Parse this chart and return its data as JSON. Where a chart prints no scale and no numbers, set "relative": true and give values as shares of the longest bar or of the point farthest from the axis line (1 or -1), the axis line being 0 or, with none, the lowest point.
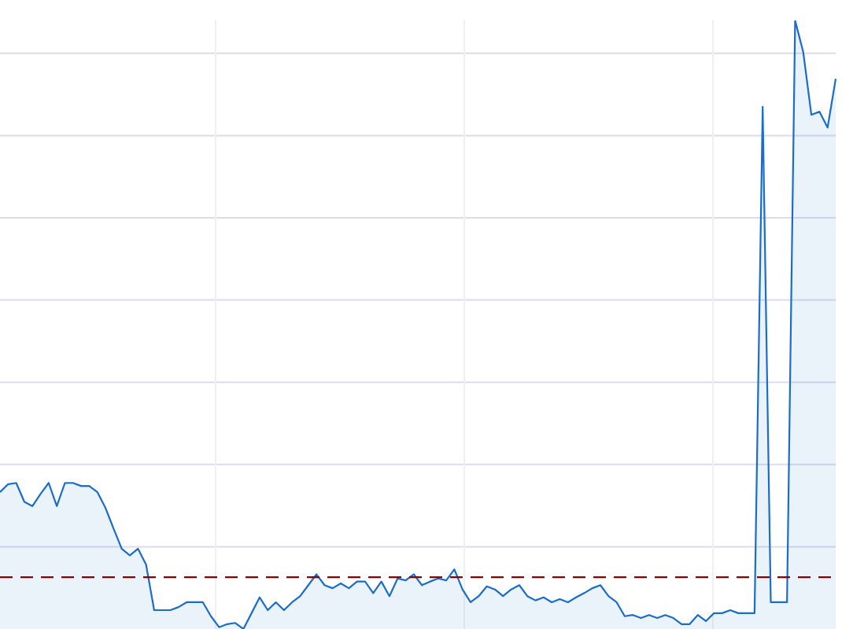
{
  "chart_data": {
    "type": "area",
    "relative": true,
    "categories": [
      null,
      null,
      null,
      null,
      null,
      null,
      null,
      null,
      null,
      null,
      null,
      null,
      null,
      null,
      null,
      null,
      null,
      null,
      null,
      null,
      null,
      null,
      null,
      null,
      null,
      null,
      null,
      null,
      null,
      null,
      null,
      null,
      null,
      null,
      null,
      null,
      null,
      null,
      null,
      null,
      null,
      null,
      null,
      null,
      null,
      null,
      null,
      null,
      null,
      null,
      null,
      null,
      null,
      null,
      null,
      null,
      null,
      null,
      null,
      null,
      null,
      null,
      null,
      null,
      null,
      null,
      null,
      null,
      null,
      null,
      null,
      null,
      null,
      null,
      null,
      null,
      null,
      null,
      null,
      null,
      null,
      null,
      null,
      null,
      null,
      null,
      null,
      null,
      null,
      null,
      null,
      null,
      null,
      null,
      null,
      null,
      null,
      null,
      null,
      null,
      null,
      null,
      null,
      null
    ],
    "values": [
      0.225,
      0.238,
      0.24,
      0.209,
      0.202,
      0.222,
      0.24,
      0.202,
      0.24,
      0.24,
      0.235,
      0.235,
      0.225,
      0.199,
      0.165,
      0.132,
      0.121,
      0.132,
      0.106,
      0.031,
      0.031,
      0.031,
      0.036,
      0.044,
      0.044,
      0.044,
      0.021,
      0.003,
      0.008,
      0.01,
      0,
      0.026,
      0.052,
      0.031,
      0.044,
      0.031,
      0.044,
      0.054,
      0.072,
      0.09,
      0.072,
      0.067,
      0.075,
      0.067,
      0.078,
      0.078,
      0.059,
      0.078,
      0.054,
      0.083,
      0.08,
      0.09,
      0.072,
      0.078,
      0.083,
      0.08,
      0.098,
      0.065,
      0.044,
      0.054,
      0.07,
      0.065,
      0.054,
      0.065,
      0.072,
      0.054,
      0.047,
      0.052,
      0.044,
      0.049,
      0.044,
      0.052,
      0.059,
      0.067,
      0.072,
      0.054,
      0.044,
      0.021,
      0.023,
      0.018,
      0.023,
      0.018,
      0.023,
      0.018,
      0.008,
      0.008,
      0.023,
      0.013,
      0.026,
      0.026,
      0.031,
      0.026,
      0.026,
      0.026,
      0.858,
      0.044,
      0.044,
      0.044,
      1,
      0.948,
      0.845,
      0.85,
      0.824,
      0.904
    ],
    "color": "#1a6dcc",
    "ref_lines": [
      {
        "axis": "y",
        "value": 0.085,
        "color": "#8b0000",
        "line_style": "dashed"
      }
    ],
    "grid": true,
    "tick_labels": false
  }
}
